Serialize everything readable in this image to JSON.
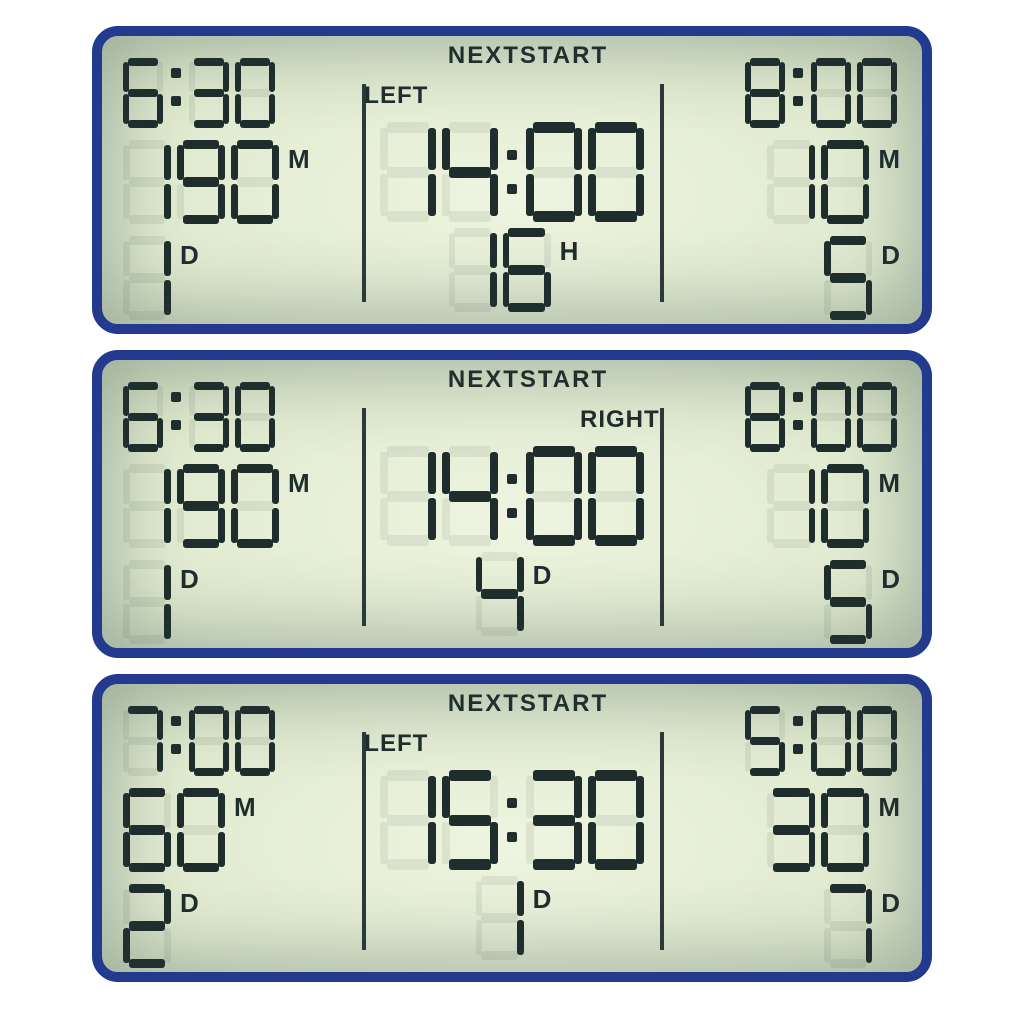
{
  "colors": {
    "bezel": "#233a8e",
    "lcd_light": "#eef4e0",
    "lcd_mid": "#c5d4b4",
    "lcd_dark": "#7a9180",
    "segment": "#1f2e2c"
  },
  "labels": {
    "nextstart": "NEXTSTART",
    "left": "LEFT",
    "right": "RIGHT"
  },
  "units": {
    "M": "M",
    "D": "D",
    "H": "H"
  },
  "panels": [
    {
      "side_label": "LEFT",
      "side_position": "left",
      "left": {
        "time": "6:30",
        "duration_value": "190",
        "duration_unit": "M",
        "interval_value": "1",
        "interval_unit": "D"
      },
      "center": {
        "big_time": "14:00",
        "sub_value": "16",
        "sub_unit": "H"
      },
      "right": {
        "time": "8:00",
        "duration_value": "10",
        "duration_unit": "M",
        "interval_value": "5",
        "interval_unit": "D"
      }
    },
    {
      "side_label": "RIGHT",
      "side_position": "right",
      "left": {
        "time": "6:30",
        "duration_value": "190",
        "duration_unit": "M",
        "interval_value": "1",
        "interval_unit": "D"
      },
      "center": {
        "big_time": "14:00",
        "sub_value": "4",
        "sub_unit": "D"
      },
      "right": {
        "time": "8:00",
        "duration_value": "10",
        "duration_unit": "M",
        "interval_value": "5",
        "interval_unit": "D"
      }
    },
    {
      "side_label": "LEFT",
      "side_position": "left",
      "left": {
        "time": "7:00",
        "duration_value": "60",
        "duration_unit": "M",
        "interval_value": "2",
        "interval_unit": "D"
      },
      "center": {
        "big_time": "15:30",
        "sub_value": "1",
        "sub_unit": "D"
      },
      "right": {
        "time": "5:00",
        "duration_value": "30",
        "duration_unit": "M",
        "interval_value": "7",
        "interval_unit": "D"
      }
    }
  ]
}
